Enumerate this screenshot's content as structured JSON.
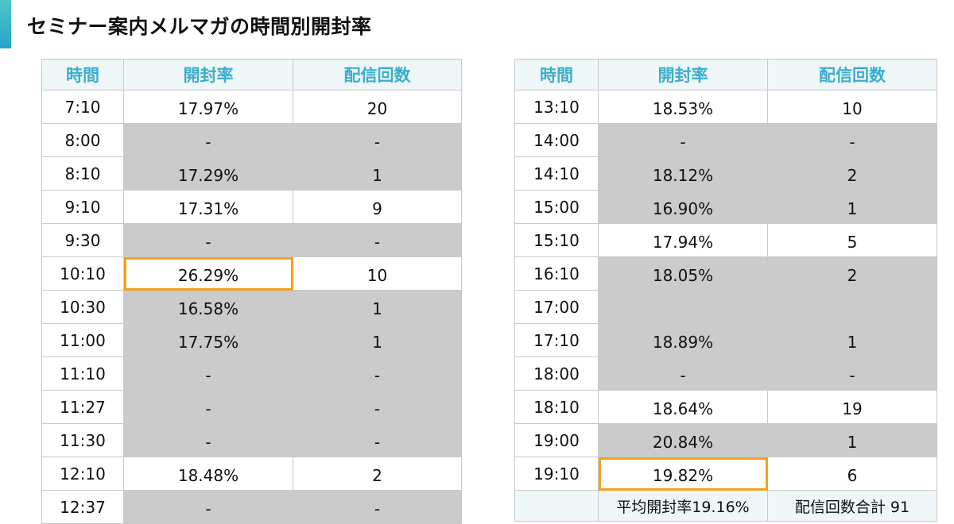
{
  "title": "セミナー案内メルマガの時間別開封率",
  "colors": {
    "accent": "#3aaecb",
    "highlight": "#f2a21e",
    "gray": "#cbcbcb"
  },
  "headers": [
    "時間",
    "開封率",
    "配信回数"
  ],
  "left_table": [
    {
      "time": "7:10",
      "rate": "17.97%",
      "count": "20",
      "shaded": false
    },
    {
      "time": "8:00",
      "rate": "-",
      "count": "-",
      "shaded": true
    },
    {
      "time": "8:10",
      "rate": "17.29%",
      "count": "1",
      "shaded": true
    },
    {
      "time": "9:10",
      "rate": "17.31%",
      "count": "9",
      "shaded": false
    },
    {
      "time": "9:30",
      "rate": "-",
      "count": "-",
      "shaded": true
    },
    {
      "time": "10:10",
      "rate": "26.29%",
      "count": "10",
      "shaded": false,
      "highlight": true
    },
    {
      "time": "10:30",
      "rate": "16.58%",
      "count": "1",
      "shaded": true
    },
    {
      "time": "11:00",
      "rate": "17.75%",
      "count": "1",
      "shaded": true
    },
    {
      "time": "11:10",
      "rate": "-",
      "count": "-",
      "shaded": true
    },
    {
      "time": "11:27",
      "rate": "-",
      "count": "-",
      "shaded": true
    },
    {
      "time": "11:30",
      "rate": "-",
      "count": "-",
      "shaded": true
    },
    {
      "time": "12:10",
      "rate": "18.48%",
      "count": "2",
      "shaded": false
    },
    {
      "time": "12:37",
      "rate": "-",
      "count": "-",
      "shaded": true
    }
  ],
  "right_table": [
    {
      "time": "13:10",
      "rate": "18.53%",
      "count": "10",
      "shaded": false
    },
    {
      "time": "14:00",
      "rate": "-",
      "count": "-",
      "shaded": true
    },
    {
      "time": "14:10",
      "rate": "18.12%",
      "count": "2",
      "shaded": true
    },
    {
      "time": "15:00",
      "rate": "16.90%",
      "count": "1",
      "shaded": true
    },
    {
      "time": "15:10",
      "rate": "17.94%",
      "count": "5",
      "shaded": false
    },
    {
      "time": "16:10",
      "rate": "18.05%",
      "count": "2",
      "shaded": true
    },
    {
      "time": "17:00",
      "rate": "",
      "count": "",
      "shaded": true
    },
    {
      "time": "17:10",
      "rate": "18.89%",
      "count": "1",
      "shaded": true
    },
    {
      "time": "18:00",
      "rate": "-",
      "count": "-",
      "shaded": true
    },
    {
      "time": "18:10",
      "rate": "18.64%",
      "count": "19",
      "shaded": false
    },
    {
      "time": "19:00",
      "rate": "20.84%",
      "count": "1",
      "shaded": true
    },
    {
      "time": "19:10",
      "rate": "19.82%",
      "count": "6",
      "shaded": false,
      "highlight": true
    }
  ],
  "footer": {
    "time": "",
    "average": "平均開封率19.16%",
    "total": "配信回数合計 91"
  }
}
